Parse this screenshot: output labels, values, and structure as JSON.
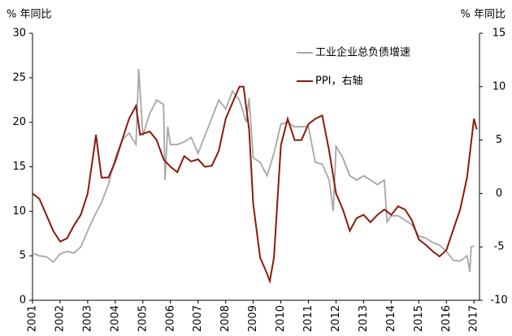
{
  "chart_data": {
    "type": "line",
    "y_unit_left": "% 年同比",
    "y_unit_right": "% 年同比",
    "xlim": [
      2001,
      2017.2
    ],
    "xticks": [
      2001,
      2002,
      2003,
      2004,
      2005,
      2006,
      2007,
      2008,
      2009,
      2010,
      2011,
      2012,
      2013,
      2014,
      2015,
      2016,
      2017
    ],
    "ylim": [
      0,
      30
    ],
    "yticks": [
      0,
      5,
      10,
      15,
      20,
      25,
      30
    ],
    "y2lim": [
      -10,
      15
    ],
    "y2ticks": [
      -10,
      -5,
      0,
      5,
      10,
      15
    ],
    "series": [
      {
        "name": "工业企业总负债增速",
        "color": "#a6a6a6",
        "x": [
          2001,
          2001.25,
          2001.5,
          2001.75,
          2002,
          2002.25,
          2002.5,
          2002.75,
          2003,
          2003.25,
          2003.5,
          2003.75,
          2004,
          2004.25,
          2004.5,
          2004.75,
          2004.85,
          2005,
          2005.25,
          2005.5,
          2005.75,
          2005.8,
          2005.9,
          2006,
          2006.25,
          2006.5,
          2006.75,
          2007,
          2007.25,
          2007.5,
          2007.75,
          2008,
          2008.25,
          2008.5,
          2008.75,
          2008.85,
          2009,
          2009.25,
          2009.5,
          2009.75,
          2010,
          2010.25,
          2010.5,
          2010.75,
          2011,
          2011.25,
          2011.5,
          2011.75,
          2011.9,
          2012,
          2012.25,
          2012.5,
          2012.75,
          2013,
          2013.25,
          2013.5,
          2013.75,
          2013.85,
          2014,
          2014.25,
          2014.5,
          2014.75,
          2015,
          2015.25,
          2015.5,
          2015.75,
          2016,
          2016.25,
          2016.5,
          2016.75,
          2016.85,
          2016.9,
          2017
        ],
        "values": [
          5.3,
          5.0,
          4.9,
          4.3,
          5.2,
          5.5,
          5.3,
          6.0,
          7.8,
          9.5,
          11,
          13,
          16,
          18,
          18.8,
          17.5,
          26,
          18.5,
          21,
          22.5,
          22,
          13.5,
          19.5,
          17.5,
          17.5,
          17.8,
          18.3,
          16.5,
          18.5,
          20.5,
          22.5,
          21.5,
          23.5,
          22.5,
          20,
          22.7,
          16,
          15.5,
          14,
          16.5,
          19.8,
          20,
          19.5,
          19.5,
          19.5,
          15.5,
          15.3,
          13.5,
          10,
          17.3,
          16,
          14,
          13.5,
          14,
          13.5,
          13,
          13.5,
          8.8,
          9.5,
          9.5,
          9,
          8.5,
          7.2,
          7,
          6.5,
          6.2,
          5.5,
          4.5,
          4.4,
          5,
          3.2,
          6,
          6.1
        ]
      },
      {
        "name": "PPI，右轴",
        "color": "#8b1a0a",
        "axis": "y2",
        "x": [
          2001,
          2001.25,
          2001.5,
          2001.75,
          2002,
          2002.25,
          2002.5,
          2002.75,
          2003,
          2003.25,
          2003.3,
          2003.5,
          2003.75,
          2004,
          2004.25,
          2004.5,
          2004.75,
          2004.9,
          2005.25,
          2005.5,
          2005.75,
          2006,
          2006.25,
          2006.5,
          2006.75,
          2007,
          2007.25,
          2007.5,
          2007.75,
          2008,
          2008.25,
          2008.5,
          2008.65,
          2008.85,
          2009,
          2009.25,
          2009.5,
          2009.6,
          2009.75,
          2010,
          2010.25,
          2010.5,
          2010.75,
          2011,
          2011.25,
          2011.5,
          2011.75,
          2012,
          2012.25,
          2012.5,
          2012.75,
          2013,
          2013.25,
          2013.5,
          2013.75,
          2014,
          2014.25,
          2014.5,
          2014.75,
          2015,
          2015.25,
          2015.5,
          2015.75,
          2016,
          2016.25,
          2016.5,
          2016.75,
          2017,
          2017.1
        ],
        "values": [
          0,
          -0.5,
          -2,
          -3.5,
          -4.5,
          -4.2,
          -3,
          -2,
          0,
          4.5,
          5.5,
          1.5,
          1.5,
          3,
          5,
          7,
          8.2,
          5.5,
          5.8,
          5,
          3.2,
          2.5,
          2,
          3.5,
          3,
          3.2,
          2.5,
          2.6,
          4,
          7,
          8.5,
          10,
          10,
          6,
          -1,
          -6,
          -7.5,
          -8.2,
          -6,
          4.5,
          7,
          5,
          5,
          6.5,
          7,
          7.3,
          4,
          0,
          -1.5,
          -3.5,
          -2.3,
          -2,
          -2.7,
          -2,
          -1.5,
          -2,
          -1.2,
          -1.5,
          -2.5,
          -4.3,
          -4.8,
          -5.4,
          -5.9,
          -5.3,
          -3.4,
          -1.5,
          1.5,
          7,
          6
        ]
      }
    ]
  }
}
